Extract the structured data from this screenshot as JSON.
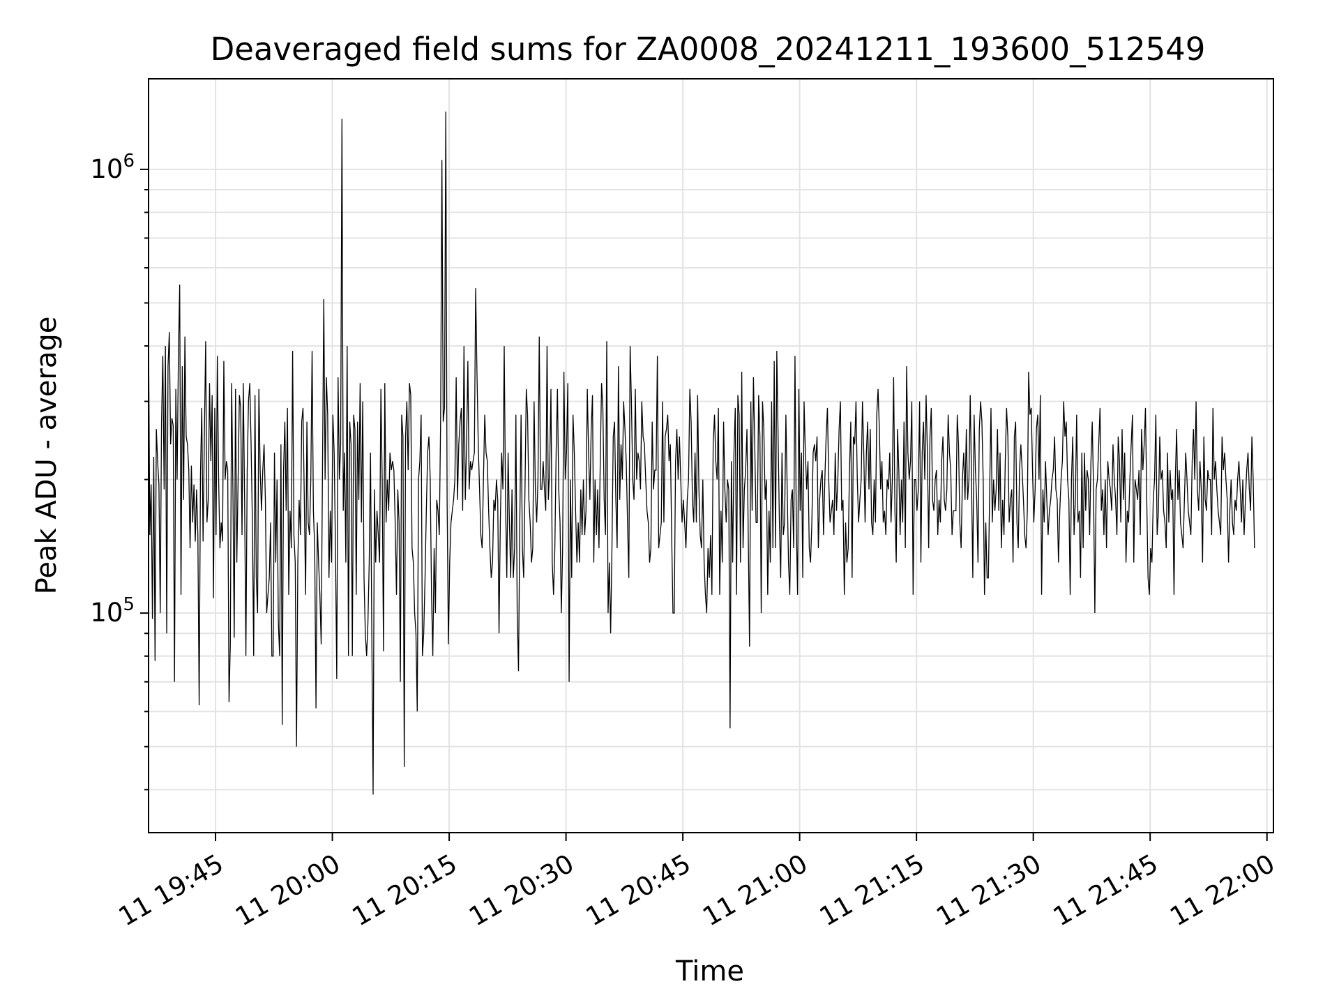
{
  "chart_data": {
    "type": "line",
    "title": "Deaveraged field sums for ZA0008_20241211_193600_512549",
    "xlabel": "Time",
    "ylabel": "Peak ADU - average",
    "yscale": "log",
    "ylim": [
      32000,
      1600000
    ],
    "xlim": [
      "2024-12-11 19:36:24",
      "2024-12-11 22:00:50"
    ],
    "grid": true,
    "line_color": "#000000",
    "grid_color": "#e3e3e3",
    "x_ticks": [
      {
        "time": "2024-12-11 19:45:00",
        "label": "11 19:45"
      },
      {
        "time": "2024-12-11 20:00:00",
        "label": "11 20:00"
      },
      {
        "time": "2024-12-11 20:15:00",
        "label": "11 20:15"
      },
      {
        "time": "2024-12-11 20:30:00",
        "label": "11 20:30"
      },
      {
        "time": "2024-12-11 20:45:00",
        "label": "11 20:45"
      },
      {
        "time": "2024-12-11 21:00:00",
        "label": "11 21:00"
      },
      {
        "time": "2024-12-11 21:15:00",
        "label": "11 21:15"
      },
      {
        "time": "2024-12-11 21:30:00",
        "label": "11 21:30"
      },
      {
        "time": "2024-12-11 21:45:00",
        "label": "11 21:45"
      },
      {
        "time": "2024-12-11 22:00:00",
        "label": "11 22:00"
      }
    ],
    "y_ticks": [
      {
        "value": 100000,
        "base": "10",
        "exp": "5"
      },
      {
        "value": 1000000,
        "base": "10",
        "exp": "6"
      }
    ],
    "series": [
      {
        "x_start": "2024-12-11 19:36:24",
        "x_step_seconds": 10,
        "y": [
          430000,
          150000,
          195000,
          97000,
          225000,
          78000,
          260000,
          220000,
          195000,
          100000,
          270000,
          380000,
          190000,
          400000,
          90000,
          360000,
          430000,
          240000,
          275000,
          265000,
          70000,
          320000,
          200000,
          380000,
          550000,
          110000,
          360000,
          180000,
          420000,
          250000,
          240000,
          210000,
          140000,
          215000,
          160000,
          195000,
          145000,
          190000,
          150000,
          62000,
          205000,
          290000,
          145000,
          250000,
          410000,
          160000,
          180000,
          330000,
          220000,
          310000,
          108000,
          290000,
          150000,
          380000,
          200000,
          140000,
          160000,
          145000,
          370000,
          200000,
          220000,
          210000,
          63000,
          85000,
          330000,
          190000,
          88000,
          320000,
          130000,
          200000,
          310000,
          290000,
          150000,
          330000,
          180000,
          80000,
          210000,
          300000,
          330000,
          240000,
          160000,
          80000,
          310000,
          120000,
          100000,
          320000,
          210000,
          170000,
          210000,
          240000,
          180000,
          100000,
          110000,
          120000,
          160000,
          80000,
          80000,
          230000,
          130000,
          200000,
          95000,
          80000,
          240000,
          56000,
          210000,
          270000,
          170000,
          290000,
          110000,
          170000,
          140000,
          390000,
          150000,
          130000,
          50000,
          130000,
          180000,
          150000,
          270000,
          290000,
          180000,
          110000,
          270000,
          160000,
          150000,
          200000,
          390000,
          170000,
          140000,
          61000,
          160000,
          130000,
          110000,
          85000,
          210000,
          510000,
          200000,
          340000,
          280000,
          120000,
          170000,
          130000,
          280000,
          230000,
          140000,
          71000,
          340000,
          200000,
          240000,
          1300000,
          170000,
          230000,
          130000,
          400000,
          80000,
          270000,
          240000,
          80000,
          280000,
          260000,
          110000,
          270000,
          180000,
          330000,
          160000,
          300000,
          120000,
          90000,
          80000,
          95000,
          130000,
          230000,
          90000,
          39000,
          190000,
          130000,
          170000,
          150000,
          130000,
          320000,
          200000,
          82000,
          330000,
          160000,
          200000,
          170000,
          230000,
          210000,
          220000,
          210000,
          160000,
          110000,
          190000,
          160000,
          70000,
          280000,
          250000,
          45000,
          250000,
          300000,
          210000,
          330000,
          310000,
          140000,
          130000,
          100000,
          90000,
          60000,
          200000,
          220000,
          280000,
          80000,
          90000,
          120000,
          170000,
          230000,
          250000,
          200000,
          110000,
          80000,
          140000,
          100000,
          180000,
          170000,
          150000,
          270000,
          1050000,
          270000,
          290000,
          1350000,
          180000,
          85000,
          130000,
          160000,
          170000,
          180000,
          200000,
          340000,
          180000,
          240000,
          270000,
          290000,
          170000,
          400000,
          180000,
          240000,
          370000,
          190000,
          220000,
          210000,
          220000,
          230000,
          540000,
          350000,
          240000,
          190000,
          150000,
          140000,
          200000,
          280000,
          230000,
          220000,
          170000,
          140000,
          120000,
          130000,
          180000,
          170000,
          200000,
          180000,
          90000,
          160000,
          230000,
          190000,
          400000,
          180000,
          120000,
          230000,
          160000,
          120000,
          190000,
          120000,
          140000,
          280000,
          100000,
          74000,
          160000,
          280000,
          140000,
          120000,
          190000,
          320000,
          280000,
          180000,
          160000,
          130000,
          140000,
          300000,
          190000,
          160000,
          200000,
          420000,
          190000,
          190000,
          220000,
          190000,
          170000,
          400000,
          180000,
          210000,
          320000,
          130000,
          110000,
          140000,
          230000,
          320000,
          190000,
          160000,
          100000,
          140000,
          350000,
          200000,
          230000,
          330000,
          70000,
          200000,
          120000,
          280000,
          230000,
          170000,
          130000,
          160000,
          130000,
          190000,
          150000,
          200000,
          150000,
          170000,
          320000,
          230000,
          180000,
          260000,
          310000,
          130000,
          200000,
          150000,
          190000,
          140000,
          220000,
          330000,
          290000,
          180000,
          150000,
          410000,
          100000,
          130000,
          90000,
          140000,
          250000,
          270000,
          180000,
          140000,
          360000,
          180000,
          240000,
          200000,
          300000,
          260000,
          220000,
          160000,
          120000,
          400000,
          300000,
          200000,
          180000,
          320000,
          200000,
          230000,
          220000,
          190000,
          300000,
          250000,
          240000,
          200000,
          170000,
          160000,
          130000,
          140000,
          270000,
          190000,
          210000,
          210000,
          380000,
          140000,
          150000,
          160000,
          300000,
          160000,
          250000,
          260000,
          280000,
          220000,
          240000,
          150000,
          100000,
          100000,
          220000,
          260000,
          200000,
          250000,
          200000,
          160000,
          180000,
          160000,
          140000,
          180000,
          200000,
          320000,
          270000,
          180000,
          160000,
          230000,
          160000,
          310000,
          190000,
          150000,
          140000,
          200000,
          130000,
          110000,
          100000,
          140000,
          120000,
          150000,
          110000,
          240000,
          280000,
          220000,
          200000,
          290000,
          110000,
          170000,
          130000,
          270000,
          190000,
          160000,
          200000,
          190000,
          55000,
          220000,
          130000,
          230000,
          290000,
          110000,
          310000,
          280000,
          130000,
          350000,
          140000,
          190000,
          210000,
          260000,
          150000,
          84000,
          300000,
          170000,
          340000,
          240000,
          160000,
          160000,
          310000,
          250000,
          100000,
          300000,
          260000,
          180000,
          200000,
          110000,
          170000,
          130000,
          300000,
          140000,
          370000,
          140000,
          390000,
          250000,
          160000,
          120000,
          230000,
          150000,
          160000,
          280000,
          190000,
          130000,
          110000,
          180000,
          190000,
          140000,
          380000,
          160000,
          110000,
          320000,
          170000,
          230000,
          120000,
          300000,
          230000,
          190000,
          220000,
          140000,
          130000,
          160000,
          230000,
          240000,
          220000,
          250000,
          140000,
          180000,
          200000,
          210000,
          150000,
          200000,
          250000,
          290000,
          200000,
          160000,
          170000,
          180000,
          150000,
          230000,
          170000,
          200000,
          260000,
          300000,
          170000,
          180000,
          110000,
          160000,
          130000,
          140000,
          210000,
          270000,
          120000,
          250000,
          240000,
          300000,
          200000,
          160000,
          180000,
          200000,
          300000,
          230000,
          160000,
          230000,
          270000,
          190000,
          260000,
          160000,
          150000,
          200000,
          160000,
          280000,
          320000,
          260000,
          190000,
          220000,
          160000,
          170000,
          150000,
          200000,
          190000,
          230000,
          160000,
          200000,
          340000,
          170000,
          130000,
          260000,
          210000,
          150000,
          200000,
          160000,
          270000,
          140000,
          360000,
          230000,
          200000,
          220000,
          300000,
          110000,
          200000,
          200000,
          170000,
          190000,
          300000,
          130000,
          230000,
          270000,
          200000,
          310000,
          230000,
          140000,
          250000,
          290000,
          180000,
          170000,
          200000,
          210000,
          150000,
          180000,
          160000,
          220000,
          250000,
          180000,
          170000,
          190000,
          280000,
          230000,
          210000,
          150000,
          170000,
          170000,
          170000,
          280000,
          240000,
          160000,
          140000,
          200000,
          230000,
          180000,
          260000,
          180000,
          200000,
          310000,
          200000,
          120000,
          280000,
          210000,
          180000,
          130000,
          260000,
          300000,
          270000,
          200000,
          110000,
          160000,
          120000,
          120000,
          190000,
          290000,
          160000,
          200000,
          170000,
          190000,
          260000,
          170000,
          230000,
          140000,
          180000,
          150000,
          220000,
          290000,
          250000,
          160000,
          180000,
          190000,
          130000,
          250000,
          270000,
          160000,
          140000,
          210000,
          240000,
          210000,
          180000,
          150000,
          140000,
          170000,
          350000,
          280000,
          290000,
          210000,
          160000,
          190000,
          260000,
          280000,
          200000,
          310000,
          110000,
          190000,
          160000,
          220000,
          180000,
          150000,
          170000,
          180000,
          200000,
          210000,
          250000,
          190000,
          180000,
          130000,
          170000,
          200000,
          220000,
          300000,
          250000,
          270000,
          200000,
          180000,
          110000,
          200000,
          250000,
          150000,
          180000,
          280000,
          160000,
          170000,
          120000,
          230000,
          140000,
          230000,
          170000,
          210000,
          200000,
          150000,
          220000,
          270000,
          190000,
          100000,
          190000,
          200000,
          240000,
          290000,
          170000,
          190000,
          150000,
          200000,
          140000,
          220000,
          200000,
          190000,
          170000,
          240000,
          200000,
          180000,
          150000,
          250000,
          220000,
          160000,
          260000,
          180000,
          230000,
          130000,
          170000,
          160000,
          200000,
          240000,
          280000,
          130000,
          200000,
          190000,
          180000,
          210000,
          150000,
          260000,
          210000,
          240000,
          290000,
          180000,
          120000,
          110000,
          140000,
          130000,
          180000,
          200000,
          280000,
          150000,
          170000,
          250000,
          200000,
          210000,
          170000,
          160000,
          140000,
          230000,
          160000,
          210000,
          180000,
          190000,
          110000,
          200000,
          260000,
          180000,
          210000,
          160000,
          150000,
          140000,
          180000,
          230000,
          200000,
          170000,
          160000,
          150000,
          220000,
          260000,
          200000,
          300000,
          190000,
          170000,
          220000,
          190000,
          130000,
          250000,
          180000,
          170000,
          210000,
          200000,
          200000,
          150000,
          290000,
          200000,
          220000,
          190000,
          170000,
          160000,
          150000,
          250000,
          210000,
          230000,
          200000,
          180000,
          130000,
          170000,
          200000,
          160000,
          150000,
          180000,
          170000,
          200000,
          220000,
          190000,
          160000,
          200000,
          150000,
          180000,
          210000,
          230000,
          190000,
          170000,
          250000,
          200000,
          140000
        ]
      }
    ]
  }
}
